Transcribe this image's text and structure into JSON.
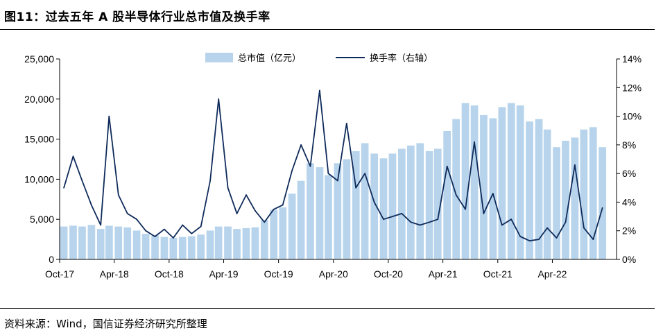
{
  "header": {
    "title": "图11：过去五年 A 股半导体行业总市值及换手率"
  },
  "footer": {
    "source": "资料来源：Wind，国信证券经济研究所整理"
  },
  "colors": {
    "bar": "#b7d4ec",
    "line": "#0e2a5a",
    "axis": "#000000"
  },
  "chart_data": {
    "type": "bar+line",
    "title": "",
    "x_ticks": [
      "Oct-17",
      "Apr-18",
      "Oct-18",
      "Apr-19",
      "Oct-19",
      "Apr-20",
      "Oct-20",
      "Apr-21",
      "Oct-21",
      "Apr-22"
    ],
    "y_left": {
      "min": 0,
      "max": 25000,
      "ticks": [
        "0",
        "5,000",
        "10,000",
        "15,000",
        "20,000",
        "25,000"
      ]
    },
    "y_right": {
      "min": 0,
      "max": 14,
      "ticks": [
        "0%",
        "2%",
        "4%",
        "6%",
        "8%",
        "10%",
        "12%",
        "14%"
      ]
    },
    "legend": {
      "placement": "top",
      "bar_label": "总市值（亿元）",
      "line_label": "换手率（右轴）"
    },
    "series_bar": {
      "name": "总市值（亿元）",
      "x": [
        "2017-10",
        "2017-11",
        "2017-12",
        "2018-01",
        "2018-02",
        "2018-03",
        "2018-04",
        "2018-05",
        "2018-06",
        "2018-07",
        "2018-08",
        "2018-09",
        "2018-10",
        "2018-11",
        "2018-12",
        "2019-01",
        "2019-02",
        "2019-03",
        "2019-04",
        "2019-05",
        "2019-06",
        "2019-07",
        "2019-08",
        "2019-09",
        "2019-10",
        "2019-11",
        "2019-12",
        "2020-01",
        "2020-02",
        "2020-03",
        "2020-04",
        "2020-05",
        "2020-06",
        "2020-07",
        "2020-08",
        "2020-09",
        "2020-10",
        "2020-11",
        "2020-12",
        "2021-01",
        "2021-02",
        "2021-03",
        "2021-04",
        "2021-05",
        "2021-06",
        "2021-07",
        "2021-08",
        "2021-09",
        "2021-10",
        "2021-11",
        "2021-12",
        "2022-01",
        "2022-02",
        "2022-03",
        "2022-04",
        "2022-05",
        "2022-06",
        "2022-07",
        "2022-08",
        "2022-09"
      ],
      "values": [
        4100,
        4200,
        4100,
        4300,
        3800,
        4200,
        4100,
        4000,
        3600,
        3200,
        3000,
        2800,
        2700,
        2800,
        2900,
        3100,
        3600,
        4100,
        4100,
        3800,
        3900,
        4000,
        4900,
        6200,
        6500,
        8200,
        9800,
        12000,
        11500,
        10500,
        12000,
        12500,
        13500,
        14500,
        13200,
        12600,
        13200,
        13800,
        14200,
        14500,
        13500,
        13800,
        16000,
        17500,
        19500,
        19200,
        18000,
        17600,
        19000,
        19500,
        19200,
        17200,
        17500,
        16200,
        14000,
        14800,
        15200,
        16200,
        16500,
        14000
      ]
    },
    "series_line": {
      "name": "换手率（右轴）",
      "x": [
        "2017-10",
        "2017-11",
        "2017-12",
        "2018-01",
        "2018-02",
        "2018-03",
        "2018-04",
        "2018-05",
        "2018-06",
        "2018-07",
        "2018-08",
        "2018-09",
        "2018-10",
        "2018-11",
        "2018-12",
        "2019-01",
        "2019-02",
        "2019-03",
        "2019-04",
        "2019-05",
        "2019-06",
        "2019-07",
        "2019-08",
        "2019-09",
        "2019-10",
        "2019-11",
        "2019-12",
        "2020-01",
        "2020-02",
        "2020-03",
        "2020-04",
        "2020-05",
        "2020-06",
        "2020-07",
        "2020-08",
        "2020-09",
        "2020-10",
        "2020-11",
        "2020-12",
        "2021-01",
        "2021-02",
        "2021-03",
        "2021-04",
        "2021-05",
        "2021-06",
        "2021-07",
        "2021-08",
        "2021-09",
        "2021-10",
        "2021-11",
        "2021-12",
        "2022-01",
        "2022-02",
        "2022-03",
        "2022-04",
        "2022-05",
        "2022-06",
        "2022-07",
        "2022-08",
        "2022-09"
      ],
      "values": [
        5.0,
        7.2,
        5.5,
        3.8,
        2.4,
        10.0,
        4.5,
        3.2,
        2.8,
        2.0,
        1.6,
        2.1,
        1.5,
        2.4,
        1.8,
        2.3,
        5.5,
        11.2,
        5.0,
        3.2,
        4.5,
        3.4,
        2.6,
        3.5,
        3.8,
        6.2,
        8.0,
        6.5,
        11.8,
        6.0,
        5.5,
        9.5,
        5.0,
        6.0,
        4.0,
        2.8,
        3.0,
        3.2,
        2.6,
        2.4,
        2.6,
        2.8,
        6.5,
        4.5,
        3.5,
        8.2,
        3.2,
        4.6,
        2.4,
        2.8,
        1.6,
        1.3,
        1.4,
        2.2,
        1.5,
        2.6,
        6.6,
        2.2,
        1.4,
        3.6
      ]
    }
  }
}
